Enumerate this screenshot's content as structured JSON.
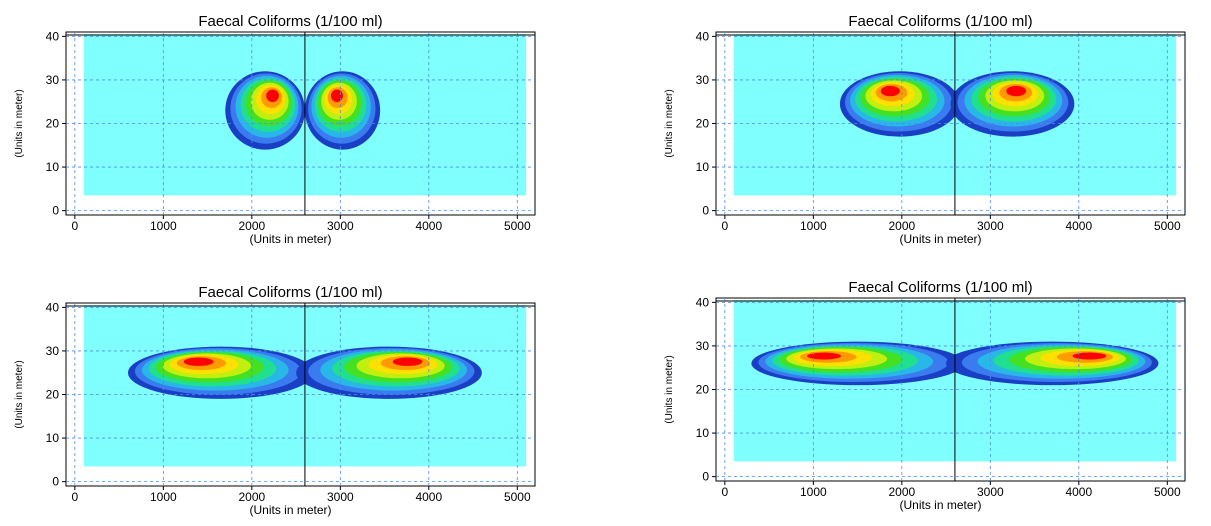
{
  "colors": {
    "background_field": "#80ffff",
    "contour_levels": [
      "#1a3fc4",
      "#3a7cf0",
      "#27b8e8",
      "#20e090",
      "#44e022",
      "#c0ef10",
      "#ffe000",
      "#ff9a00",
      "#ff0000"
    ],
    "grid": "#4a8cf0",
    "axis": "#000000",
    "centerline": "#000000"
  },
  "chart_data": [
    {
      "type": "heatmap",
      "title": "Faecal Coliforms (1/100 ml)",
      "xlabel": "(Units in meter)",
      "ylabel": "(Units in meter)",
      "xlim": [
        -100,
        5200
      ],
      "ylim": [
        -1,
        41
      ],
      "xticks": [
        "0",
        "1000",
        "2000",
        "3000",
        "4000",
        "5000"
      ],
      "yticks": [
        "0",
        "10",
        "20",
        "30",
        "40"
      ],
      "grid": true,
      "background_extent": {
        "x": [
          100,
          5100
        ],
        "y": [
          3.5,
          40.5
        ]
      },
      "centerline_x": 2600,
      "plumes": [
        {
          "x": [
            1700,
            2600
          ],
          "y": [
            14,
            32
          ],
          "peak": [
            2250,
            27
          ]
        },
        {
          "x": [
            2600,
            3450
          ],
          "y": [
            14,
            32
          ],
          "peak": [
            2950,
            27
          ]
        }
      ]
    },
    {
      "type": "heatmap",
      "title": "Faecal Coliforms (1/100 ml)",
      "xlabel": "(Units in meter)",
      "ylabel": "(Units in meter)",
      "xlim": [
        -100,
        5200
      ],
      "ylim": [
        -1,
        41
      ],
      "xticks": [
        "0",
        "1000",
        "2000",
        "3000",
        "4000",
        "5000"
      ],
      "yticks": [
        "0",
        "10",
        "20",
        "30",
        "40"
      ],
      "grid": true,
      "background_extent": {
        "x": [
          100,
          5100
        ],
        "y": [
          3.5,
          40.5
        ]
      },
      "centerline_x": 2600,
      "plumes": [
        {
          "x": [
            1300,
            2650
          ],
          "y": [
            17,
            32
          ],
          "peak": [
            1850,
            28
          ]
        },
        {
          "x": [
            2550,
            3950
          ],
          "y": [
            17,
            32
          ],
          "peak": [
            3300,
            28
          ]
        }
      ]
    },
    {
      "type": "heatmap",
      "title": "Faecal Coliforms (1/100 ml)",
      "xlabel": "(Units in meter)",
      "ylabel": "(Units in meter)",
      "xlim": [
        -100,
        5200
      ],
      "ylim": [
        -1,
        41
      ],
      "xticks": [
        "0",
        "1000",
        "2000",
        "3000",
        "4000",
        "5000"
      ],
      "yticks": [
        "0",
        "10",
        "20",
        "30",
        "40"
      ],
      "grid": true,
      "background_extent": {
        "x": [
          100,
          5100
        ],
        "y": [
          3.5,
          40.5
        ]
      },
      "centerline_x": 2600,
      "plumes": [
        {
          "x": [
            600,
            2700
          ],
          "y": [
            19,
            31
          ],
          "peak": [
            1350,
            28
          ]
        },
        {
          "x": [
            2500,
            4600
          ],
          "y": [
            19,
            31
          ],
          "peak": [
            3800,
            28
          ]
        }
      ]
    },
    {
      "type": "heatmap",
      "title": "Faecal Coliforms (1/100 ml)",
      "xlabel": "(Units in meter)",
      "ylabel": "(Units in meter)",
      "xlim": [
        -100,
        5200
      ],
      "ylim": [
        -1,
        41
      ],
      "xticks": [
        "0",
        "1000",
        "2000",
        "3000",
        "4000",
        "5000"
      ],
      "yticks": [
        "0",
        "10",
        "20",
        "30",
        "40"
      ],
      "grid": true,
      "background_extent": {
        "x": [
          100,
          5100
        ],
        "y": [
          3.5,
          40.5
        ]
      },
      "centerline_x": 2600,
      "plumes": [
        {
          "x": [
            300,
            2700
          ],
          "y": [
            21,
            31
          ],
          "peak": [
            1050,
            28
          ]
        },
        {
          "x": [
            2500,
            4900
          ],
          "y": [
            21,
            31
          ],
          "peak": [
            4200,
            28
          ]
        }
      ]
    }
  ]
}
